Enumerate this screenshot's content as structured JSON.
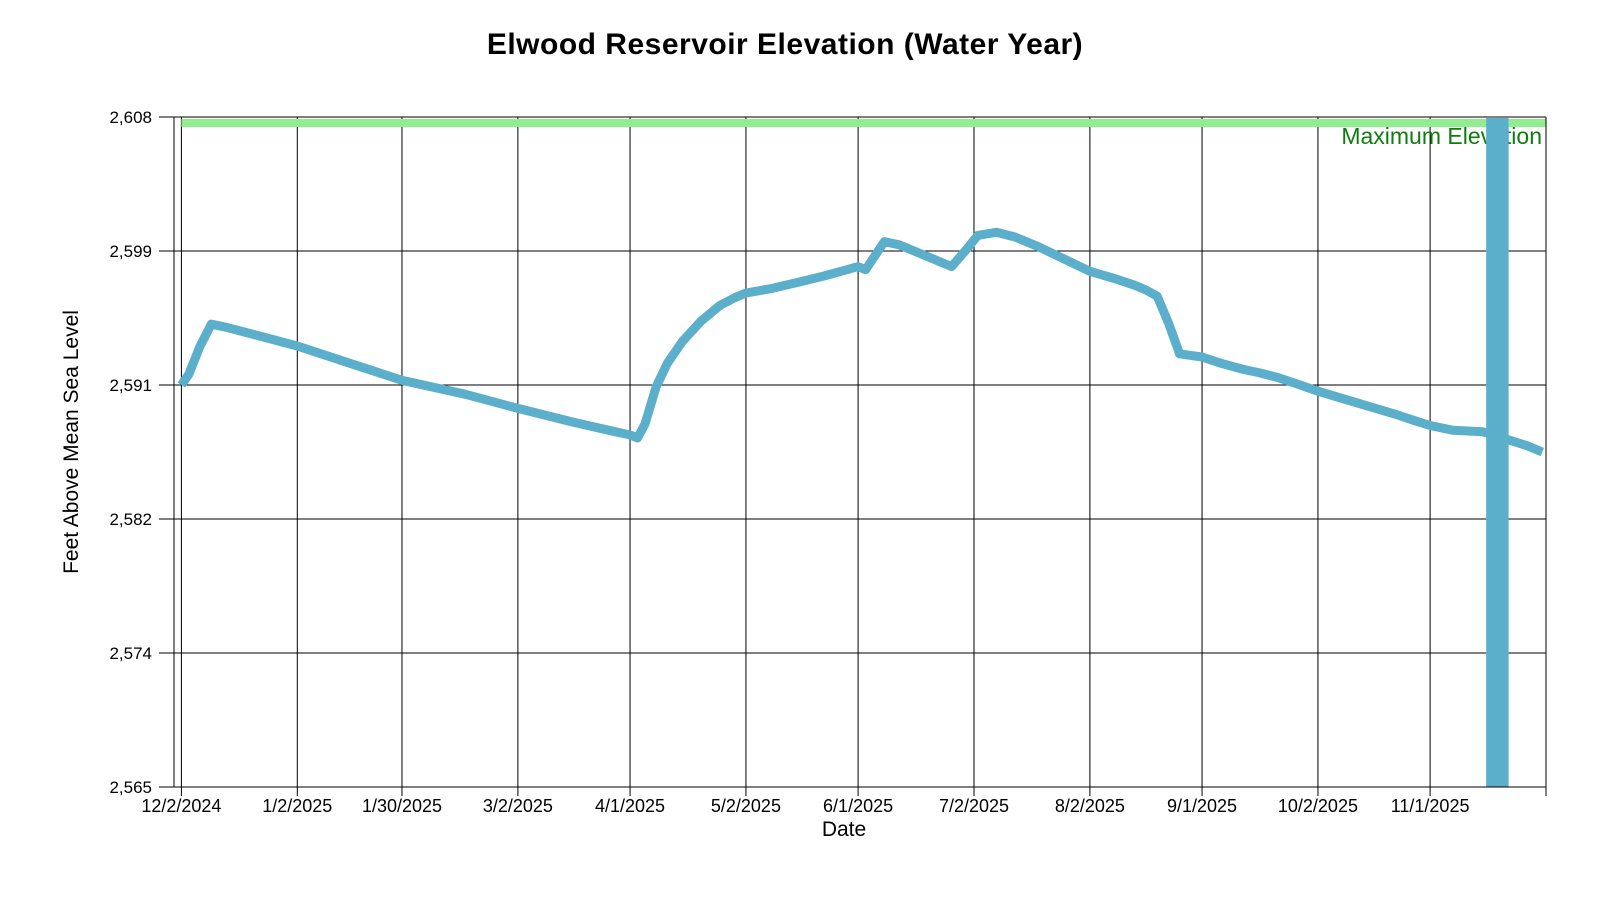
{
  "page": {
    "title": "Elwood Reservoir Elevation (Water Year)"
  },
  "chart_data": {
    "type": "line",
    "title": "Elwood Reservoir Elevation (Water Year)",
    "xlabel": "Date",
    "ylabel": "Feet Above Mean Sea Level",
    "grid": true,
    "legend_position": "none",
    "y_axis": {
      "min": 2565,
      "max": 2608,
      "tick_labels_bottom_to_top": [
        "2,565",
        "2,574",
        "2,582",
        "2,591",
        "2,599",
        "2,608"
      ]
    },
    "x_axis": {
      "start": "12/2/2024",
      "end": "12/2/2025",
      "tick_labels": [
        "12/2/2024",
        "1/2/2025",
        "1/30/2025",
        "3/2/2025",
        "4/1/2025",
        "5/2/2025",
        "6/1/2025",
        "7/2/2025",
        "8/2/2025",
        "9/1/2025",
        "10/2/2025",
        "11/1/2025"
      ],
      "right_edge_tick_date": "12/2/2025",
      "right_edge_tick_labeled": false
    },
    "max_elevation": {
      "label": "Maximum Elevation",
      "value": 2608,
      "band_color": "#90EE90",
      "label_color": "#0e7c0e"
    },
    "series": [
      {
        "color": "#5BAFCB",
        "stroke_width": 9,
        "points": [
          [
            "12/2/2024",
            2590.8
          ],
          [
            "12/4/2024",
            2591.5
          ],
          [
            "12/7/2024",
            2593.3
          ],
          [
            "12/10/2024",
            2594.7
          ],
          [
            "12/14/2024",
            2594.5
          ],
          [
            "12/22/2024",
            2594.0
          ],
          [
            "1/2/2025",
            2593.3
          ],
          [
            "1/16/2025",
            2592.2
          ],
          [
            "1/30/2025",
            2591.1
          ],
          [
            "2/16/2025",
            2590.2
          ],
          [
            "3/2/2025",
            2589.3
          ],
          [
            "3/17/2025",
            2588.4
          ],
          [
            "3/28/2025",
            2587.8
          ],
          [
            "4/1/2025",
            2587.6
          ],
          [
            "4/3/2025",
            2587.4
          ],
          [
            "4/5/2025",
            2588.3
          ],
          [
            "4/8/2025",
            2590.7
          ],
          [
            "4/11/2025",
            2592.2
          ],
          [
            "4/15/2025",
            2593.6
          ],
          [
            "4/20/2025",
            2594.9
          ],
          [
            "4/25/2025",
            2595.9
          ],
          [
            "4/29/2025",
            2596.4
          ],
          [
            "5/2/2025",
            2596.7
          ],
          [
            "5/9/2025",
            2597.0
          ],
          [
            "5/16/2025",
            2597.4
          ],
          [
            "5/23/2025",
            2597.8
          ],
          [
            "5/29/2025",
            2598.2
          ],
          [
            "6/1/2025",
            2598.4
          ],
          [
            "6/3/2025",
            2598.2
          ],
          [
            "6/8/2025",
            2600.0
          ],
          [
            "6/12/2025",
            2599.8
          ],
          [
            "6/18/2025",
            2599.2
          ],
          [
            "6/24/2025",
            2598.6
          ],
          [
            "6/26/2025",
            2598.4
          ],
          [
            "6/30/2025",
            2599.5
          ],
          [
            "7/3/2025",
            2600.4
          ],
          [
            "7/8/2025",
            2600.6
          ],
          [
            "7/13/2025",
            2600.3
          ],
          [
            "7/19/2025",
            2599.7
          ],
          [
            "7/26/2025",
            2598.9
          ],
          [
            "8/2/2025",
            2598.1
          ],
          [
            "8/9/2025",
            2597.6
          ],
          [
            "8/14/2025",
            2597.2
          ],
          [
            "8/17/2025",
            2596.9
          ],
          [
            "8/20/2025",
            2596.5
          ],
          [
            "8/23/2025",
            2594.8
          ],
          [
            "8/26/2025",
            2592.8
          ],
          [
            "8/29/2025",
            2592.7
          ],
          [
            "9/1/2025",
            2592.6
          ],
          [
            "9/6/2025",
            2592.2
          ],
          [
            "9/12/2025",
            2591.8
          ],
          [
            "9/16/2025",
            2591.6
          ],
          [
            "9/21/2025",
            2591.3
          ],
          [
            "9/26/2025",
            2590.9
          ],
          [
            "10/2/2025",
            2590.4
          ],
          [
            "10/9/2025",
            2589.9
          ],
          [
            "10/16/2025",
            2589.4
          ],
          [
            "10/23/2025",
            2588.9
          ],
          [
            "10/28/2025",
            2588.5
          ],
          [
            "11/1/2025",
            2588.2
          ],
          [
            "11/7/2025",
            2587.9
          ],
          [
            "11/15/2025",
            2587.8
          ],
          [
            "11/23/2025",
            2587.2
          ],
          [
            "11/27/2025",
            2586.9
          ],
          [
            "12/1/2025",
            2586.5
          ]
        ]
      }
    ],
    "anomaly_bar": {
      "start": "11/16/2025",
      "end": "11/22/2025",
      "full_height": true
    }
  }
}
